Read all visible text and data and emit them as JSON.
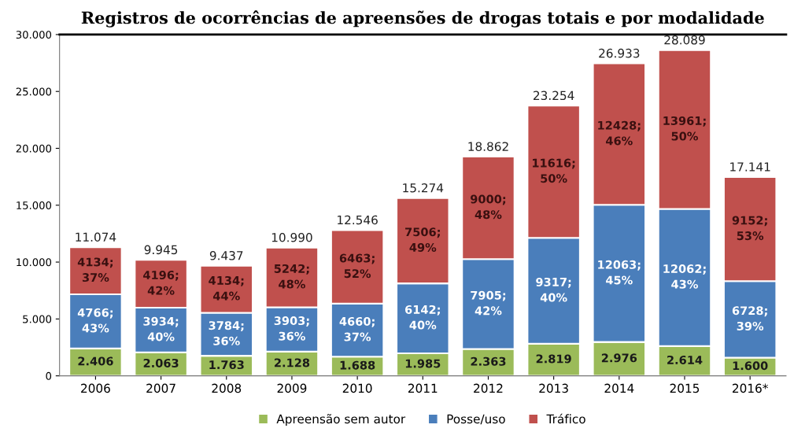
{
  "chart_data": {
    "type": "bar",
    "stacked": true,
    "title": "Registros de ocorrências de apreensões de drogas totais e por modalidade",
    "categories": [
      "2006",
      "2007",
      "2008",
      "2009",
      "2010",
      "2011",
      "2012",
      "2013",
      "2014",
      "2015",
      "2016*"
    ],
    "series": [
      {
        "name": "Apreensão sem autor",
        "color": "#9bbb59",
        "values": [
          2406,
          2063,
          1763,
          2128,
          1688,
          1985,
          2363,
          2819,
          2976,
          2614,
          1600
        ],
        "value_labels": [
          "2.406",
          "2.063",
          "1.763",
          "2.128",
          "1.688",
          "1.985",
          "2.363",
          "2.819",
          "2.976",
          "2.614",
          "1.600"
        ]
      },
      {
        "name": "Posse/uso",
        "color": "#4a7ebb",
        "values": [
          4766,
          3934,
          3784,
          3903,
          4660,
          6142,
          7905,
          9317,
          12063,
          12062,
          6728
        ],
        "value_labels": [
          "4766;\n43%",
          "3934;\n40%",
          "3784;\n36%",
          "3903;\n36%",
          "4660;\n37%",
          "6142;\n40%",
          "7905;\n42%",
          "9317;\n40%",
          "12063;\n45%",
          "12062;\n43%",
          "6728;\n39%"
        ]
      },
      {
        "name": "Tráfico",
        "color": "#c0504d",
        "values": [
          4134,
          4196,
          4134,
          5242,
          6463,
          7506,
          9000,
          11616,
          12428,
          13961,
          9152
        ],
        "value_labels": [
          "4134;\n37%",
          "4196;\n42%",
          "4134;\n44%",
          "5242;\n48%",
          "6463;\n52%",
          "7506;\n49%",
          "9000;\n48%",
          "11616;\n50%",
          "12428;\n46%",
          "13961;\n50%",
          "9152;\n53%"
        ]
      }
    ],
    "annotations": [
      {
        "text": "11.074",
        "x": "2006",
        "y": 11306
      },
      {
        "text": "9.945",
        "x": "2007",
        "y": 10193
      },
      {
        "text": "9.437",
        "x": "2008",
        "y": 9681
      },
      {
        "text": "10.990",
        "x": "2009",
        "y": 11273
      },
      {
        "text": "12.546",
        "x": "2010",
        "y": 12811
      },
      {
        "text": "15.274",
        "x": "2011",
        "y": 15633
      },
      {
        "text": "18.862",
        "x": "2012",
        "y": 19268
      },
      {
        "text": "23.254",
        "x": "2013",
        "y": 23752
      },
      {
        "text": "26.933",
        "x": "2014",
        "y": 27467
      },
      {
        "text": "28.089",
        "x": "2015",
        "y": 28637
      },
      {
        "text": "17.141",
        "x": "2016*",
        "y": 17480
      }
    ],
    "ylim": [
      0,
      30000
    ],
    "yticks": [
      {
        "value": 0,
        "label": "0"
      },
      {
        "value": 5000,
        "label": "5.000"
      },
      {
        "value": 10000,
        "label": "10.000"
      },
      {
        "value": 15000,
        "label": "15.000"
      },
      {
        "value": 20000,
        "label": "20.000"
      },
      {
        "value": 25000,
        "label": "25.000"
      },
      {
        "value": 30000,
        "label": "30.000"
      }
    ],
    "grid": false,
    "legend": "bottom"
  }
}
